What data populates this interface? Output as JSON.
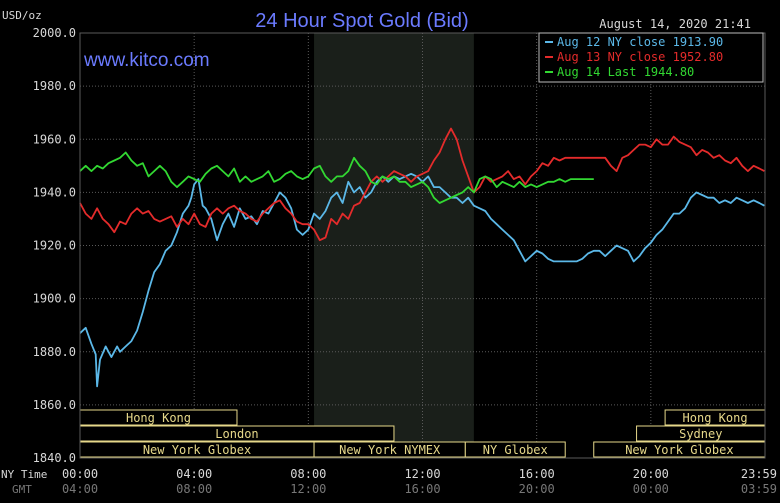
{
  "header": {
    "title": "24 Hour Spot Gold (Bid)",
    "units": "USD/oz",
    "timestamp": "August 14, 2020 21:41",
    "website": "www.kitco.com"
  },
  "colors": {
    "background": "#000000",
    "plot_background": "#000000",
    "night_shading": "#1a1f1a",
    "grid": "#5a5a5a",
    "title": "#6b7bff",
    "website": "#6b7bff",
    "axis_text": "#d8d8d8",
    "session_bar": "#e6d88a",
    "session_text": "#e6d88a",
    "gmt_text": "#777777"
  },
  "chart_data": {
    "type": "line",
    "title": "24 Hour Spot Gold (Bid)",
    "ylabel": "USD/oz",
    "ylim": [
      1840,
      2000
    ],
    "yticks": [
      2000,
      1980,
      1960,
      1940,
      1920,
      1900,
      1880,
      1860,
      1840
    ],
    "ytick_labels": [
      "2000.0",
      "1980.0",
      "1960.0",
      "1940.0",
      "1920.0",
      "1900.0",
      "1880.0",
      "1860.0",
      "1840.0"
    ],
    "xlim": [
      0,
      24
    ],
    "xticks": [
      0,
      4,
      8,
      12,
      16,
      20,
      24
    ],
    "x_row_labels": [
      "NY Time",
      "GMT"
    ],
    "xtick_labels_ny": [
      "00:00",
      "04:00",
      "08:00",
      "12:00",
      "16:00",
      "20:00",
      "23:59"
    ],
    "xtick_labels_gmt": [
      "04:00",
      "08:00",
      "12:00",
      "16:00",
      "20:00",
      "00:00",
      "03:59"
    ],
    "grid": true,
    "legend_placement": "top-right",
    "night_shading": [
      8.2,
      13.8
    ],
    "series": [
      {
        "name": "Aug 12 NY close 1913.90",
        "color": "#5bb8e8",
        "x": [
          0.0,
          0.2,
          0.4,
          0.55,
          0.6,
          0.7,
          0.9,
          1.0,
          1.1,
          1.3,
          1.4,
          1.6,
          1.8,
          2.0,
          2.2,
          2.4,
          2.6,
          2.8,
          3.0,
          3.2,
          3.4,
          3.6,
          3.8,
          3.9,
          4.0,
          4.15,
          4.3,
          4.4,
          4.6,
          4.8,
          5.0,
          5.2,
          5.4,
          5.6,
          5.8,
          6.0,
          6.2,
          6.4,
          6.6,
          6.8,
          7.0,
          7.2,
          7.4,
          7.6,
          7.8,
          8.0,
          8.2,
          8.4,
          8.6,
          8.8,
          9.0,
          9.2,
          9.4,
          9.6,
          9.8,
          10.0,
          10.2,
          10.4,
          10.6,
          10.8,
          11.0,
          11.2,
          11.4,
          11.6,
          11.8,
          12.0,
          12.2,
          12.4,
          12.6,
          12.8,
          13.0,
          13.2,
          13.4,
          13.6,
          13.8,
          14.0,
          14.2,
          14.4,
          14.6,
          14.8,
          15.0,
          15.2,
          15.4,
          15.6,
          15.8,
          16.0,
          16.2,
          16.4,
          16.6,
          16.8,
          17.0,
          17.2,
          17.4,
          17.6,
          17.8,
          18.0,
          18.2,
          18.4,
          18.6,
          18.8,
          19.0,
          19.2,
          19.4,
          19.6,
          19.8,
          20.0,
          20.2,
          20.4,
          20.6,
          20.8,
          21.0,
          21.2,
          21.4,
          21.6,
          21.8,
          22.0,
          22.2,
          22.4,
          22.6,
          22.8,
          23.0,
          23.2,
          23.4,
          23.6,
          23.8,
          23.98
        ],
        "values": [
          1887,
          1889,
          1883,
          1879,
          1867,
          1877,
          1882,
          1880,
          1878,
          1882,
          1880,
          1882,
          1884,
          1888,
          1895,
          1903,
          1910,
          1913,
          1918,
          1920,
          1925,
          1932,
          1935,
          1938,
          1943,
          1945,
          1935,
          1934,
          1930,
          1922,
          1928,
          1932,
          1927,
          1934,
          1930,
          1931,
          1928,
          1933,
          1932,
          1936,
          1940,
          1938,
          1934,
          1926,
          1924,
          1926,
          1932,
          1930,
          1933,
          1938,
          1940,
          1936,
          1944,
          1940,
          1942,
          1938,
          1940,
          1944,
          1946,
          1944,
          1946,
          1945,
          1946,
          1947,
          1946,
          1944,
          1946,
          1942,
          1942,
          1940,
          1938,
          1938,
          1936,
          1938,
          1935,
          1934,
          1933,
          1930,
          1928,
          1926,
          1924,
          1922,
          1918,
          1914,
          1916,
          1918,
          1917,
          1915,
          1914,
          1914,
          1914,
          1914,
          1914,
          1915,
          1917,
          1918,
          1918,
          1916,
          1918,
          1920,
          1919,
          1918,
          1914,
          1916,
          1919,
          1921,
          1924,
          1926,
          1929,
          1932,
          1932,
          1934,
          1938,
          1940,
          1939,
          1938,
          1938,
          1936,
          1937,
          1936,
          1938,
          1937,
          1936,
          1937,
          1936,
          1935
        ]
      },
      {
        "name": "Aug 13 NY close 1952.80",
        "color": "#e42b2b",
        "x": [
          0.0,
          0.2,
          0.4,
          0.6,
          0.8,
          1.0,
          1.2,
          1.4,
          1.6,
          1.8,
          2.0,
          2.2,
          2.4,
          2.6,
          2.8,
          3.0,
          3.2,
          3.4,
          3.6,
          3.8,
          4.0,
          4.2,
          4.4,
          4.6,
          4.8,
          5.0,
          5.2,
          5.4,
          5.6,
          5.8,
          6.0,
          6.2,
          6.4,
          6.6,
          6.8,
          7.0,
          7.2,
          7.4,
          7.6,
          7.8,
          8.0,
          8.2,
          8.4,
          8.6,
          8.8,
          9.0,
          9.2,
          9.4,
          9.6,
          9.8,
          10.0,
          10.2,
          10.4,
          10.6,
          10.8,
          11.0,
          11.2,
          11.4,
          11.6,
          11.8,
          12.0,
          12.2,
          12.4,
          12.6,
          12.8,
          13.0,
          13.2,
          13.4,
          13.6,
          13.8,
          14.0,
          14.2,
          14.4,
          14.6,
          14.8,
          15.0,
          15.2,
          15.4,
          15.6,
          15.8,
          16.0,
          16.2,
          16.4,
          16.6,
          16.8,
          17.0,
          17.2,
          17.4,
          17.6,
          17.8,
          18.0,
          18.2,
          18.4,
          18.6,
          18.8,
          19.0,
          19.2,
          19.4,
          19.6,
          19.8,
          20.0,
          20.2,
          20.4,
          20.6,
          20.8,
          21.0,
          21.2,
          21.4,
          21.6,
          21.8,
          22.0,
          22.2,
          22.4,
          22.6,
          22.8,
          23.0,
          23.2,
          23.4,
          23.6,
          23.8,
          23.98
        ],
        "values": [
          1936,
          1932,
          1930,
          1934,
          1930,
          1928,
          1925,
          1929,
          1928,
          1932,
          1934,
          1932,
          1933,
          1930,
          1929,
          1930,
          1931,
          1927,
          1930,
          1928,
          1932,
          1928,
          1927,
          1932,
          1934,
          1932,
          1934,
          1935,
          1933,
          1932,
          1930,
          1929,
          1932,
          1934,
          1936,
          1937,
          1934,
          1932,
          1929,
          1928,
          1928,
          1926,
          1922,
          1923,
          1930,
          1928,
          1932,
          1930,
          1935,
          1936,
          1940,
          1944,
          1946,
          1944,
          1946,
          1948,
          1947,
          1946,
          1944,
          1946,
          1947,
          1948,
          1952,
          1955,
          1960,
          1964,
          1960,
          1952,
          1946,
          1940,
          1942,
          1946,
          1944,
          1945,
          1946,
          1948,
          1945,
          1946,
          1943,
          1946,
          1948,
          1951,
          1950,
          1953,
          1952,
          1953,
          1953,
          1953,
          1953,
          1953,
          1953,
          1953,
          1953,
          1950,
          1948,
          1953,
          1954,
          1956,
          1958,
          1958,
          1957,
          1960,
          1958,
          1958,
          1961,
          1959,
          1958,
          1957,
          1954,
          1956,
          1955,
          1953,
          1954,
          1952,
          1951,
          1953,
          1950,
          1948,
          1950,
          1949,
          1948
        ]
      },
      {
        "name": "Aug 14 Last 1944.80",
        "color": "#32d832",
        "x": [
          0.0,
          0.2,
          0.4,
          0.6,
          0.8,
          1.0,
          1.2,
          1.4,
          1.6,
          1.8,
          2.0,
          2.2,
          2.4,
          2.6,
          2.8,
          3.0,
          3.2,
          3.4,
          3.6,
          3.8,
          4.0,
          4.2,
          4.4,
          4.6,
          4.8,
          5.0,
          5.2,
          5.4,
          5.6,
          5.8,
          6.0,
          6.2,
          6.4,
          6.6,
          6.8,
          7.0,
          7.2,
          7.4,
          7.6,
          7.8,
          8.0,
          8.2,
          8.4,
          8.6,
          8.8,
          9.0,
          9.2,
          9.4,
          9.6,
          9.8,
          10.0,
          10.2,
          10.4,
          10.6,
          10.8,
          11.0,
          11.2,
          11.4,
          11.6,
          11.8,
          12.0,
          12.2,
          12.4,
          12.6,
          12.8,
          13.0,
          13.2,
          13.4,
          13.6,
          13.8,
          14.0,
          14.2,
          14.4,
          14.6,
          14.8,
          15.0,
          15.2,
          15.4,
          15.6,
          15.8,
          16.0,
          16.2,
          16.4,
          16.6,
          16.8,
          17.0,
          17.2,
          17.4,
          17.6,
          17.8,
          18.0
        ],
        "values": [
          1948,
          1950,
          1948,
          1950,
          1949,
          1951,
          1952,
          1953,
          1955,
          1952,
          1950,
          1951,
          1946,
          1948,
          1950,
          1948,
          1944,
          1942,
          1944,
          1946,
          1945,
          1944,
          1947,
          1949,
          1950,
          1948,
          1946,
          1949,
          1944,
          1946,
          1944,
          1945,
          1946,
          1948,
          1944,
          1945,
          1947,
          1948,
          1946,
          1945,
          1946,
          1949,
          1950,
          1946,
          1944,
          1946,
          1946,
          1948,
          1953,
          1950,
          1948,
          1944,
          1943,
          1946,
          1945,
          1946,
          1944,
          1944,
          1942,
          1943,
          1944,
          1942,
          1938,
          1936,
          1937,
          1938,
          1939,
          1940,
          1942,
          1940,
          1945,
          1946,
          1945,
          1942,
          1944,
          1943,
          1942,
          1944,
          1942,
          1943,
          1942,
          1943,
          1944,
          1944,
          1945,
          1944,
          1945,
          1945,
          1945,
          1945,
          1945
        ]
      }
    ],
    "sessions": [
      {
        "label": "Hong Kong",
        "start": 0.0,
        "end": 5.5,
        "row": 0,
        "show_label": true
      },
      {
        "label": "Hong Kong",
        "start": 20.5,
        "end": 24.0,
        "row": 0,
        "show_label": true
      },
      {
        "label": "London",
        "start": 0.0,
        "end": 11.0,
        "row": 1,
        "show_label": true
      },
      {
        "label": "Sydney",
        "start": 19.5,
        "end": 24.0,
        "row": 1,
        "show_label": true
      },
      {
        "label": "New York Globex",
        "start": 0.0,
        "end": 8.2,
        "row": 2,
        "show_label": true
      },
      {
        "label": "New York NYMEX",
        "start": 8.2,
        "end": 13.5,
        "row": 2,
        "show_label": true
      },
      {
        "label": "NY Globex",
        "start": 13.5,
        "end": 17.0,
        "row": 2,
        "show_label": true
      },
      {
        "label": "New York Globex",
        "start": 18.0,
        "end": 24.0,
        "row": 2,
        "show_label": true
      }
    ]
  }
}
